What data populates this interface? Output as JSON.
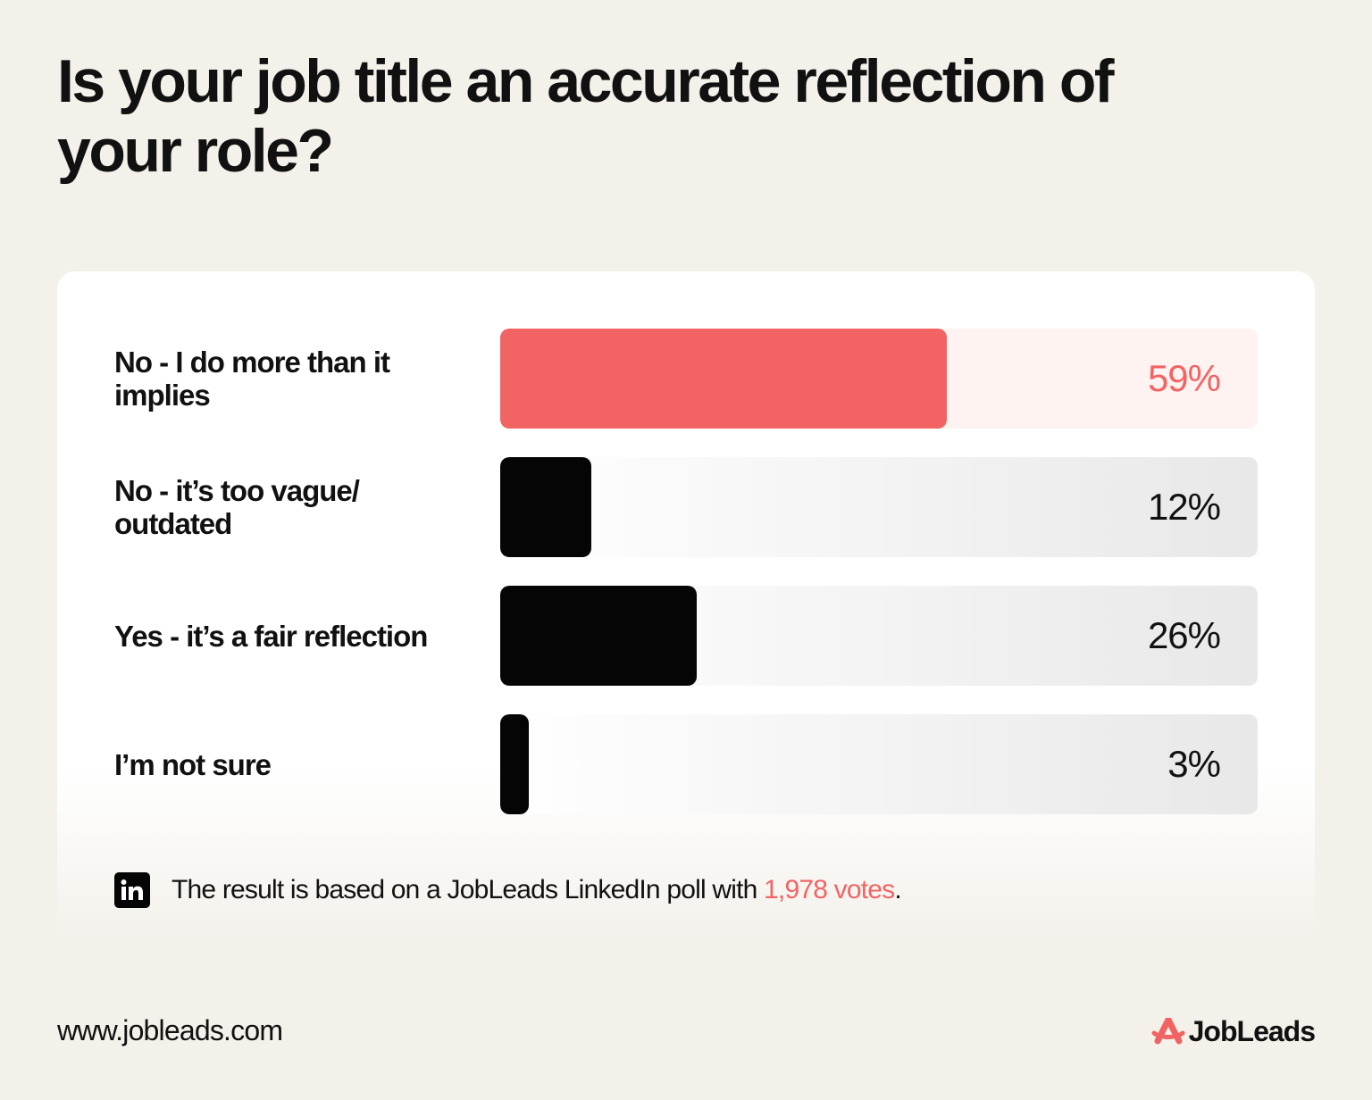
{
  "header": {
    "title": "Is your job title an accurate reflection of your role?"
  },
  "chart_data": {
    "type": "bar",
    "orientation": "horizontal",
    "title": "Is your job title an accurate reflection of your role?",
    "categories": [
      "No - I do more than it implies",
      "No - it’s too vague/ outdated",
      "Yes - it’s a fair reflection",
      "I’m not sure"
    ],
    "values": [
      59,
      12,
      26,
      3
    ],
    "value_labels": [
      "59%",
      "12%",
      "26%",
      "3%"
    ],
    "xlim": [
      0,
      100
    ],
    "highlight_index": 0,
    "grid": false,
    "colors": {
      "highlight_bar": "#f26464",
      "highlight_track": "#fef3f1",
      "bar": "#050505",
      "track_start": "#ffffff",
      "track_end": "#e8e8e8"
    }
  },
  "footnote": {
    "icon": "linkedin-icon",
    "prefix": "The result is based on a JobLeads LinkedIn poll with ",
    "highlight": "1,978 votes",
    "suffix": "."
  },
  "footer": {
    "url": "www.jobleads.com",
    "brand_name": "JobLeads",
    "brand_icon": "jobleads-logo-icon"
  },
  "colors": {
    "background": "#f4f1eb",
    "card": "#ffffff",
    "accent": "#f26464",
    "text": "#111111"
  }
}
